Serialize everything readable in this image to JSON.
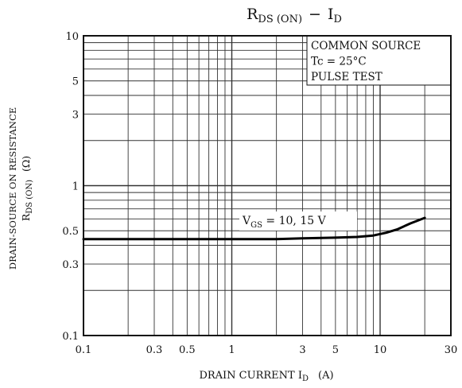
{
  "chart_data": {
    "type": "line",
    "title": {
      "main": "R",
      "main_sub": "DS (ON)",
      "dash": "−",
      "var": "I",
      "var_sub": "D"
    },
    "xlabel": {
      "prefix": "DRAIN CURRENT  I",
      "sub": "D",
      "unit": "(A)"
    },
    "ylabel": {
      "line1": "DRAIN-SOURCE ON RESISTANCE",
      "line2_main": "R",
      "line2_sub": "DS (ON)",
      "line2_unit": "(Ω)"
    },
    "x_scale": "log",
    "y_scale": "log",
    "xlim": [
      0.1,
      30
    ],
    "ylim": [
      0.1,
      10
    ],
    "x_tick_labels": [
      {
        "value": 0.1,
        "label": "0.1"
      },
      {
        "value": 0.3,
        "label": "0.3"
      },
      {
        "value": 0.5,
        "label": "0.5"
      },
      {
        "value": 1,
        "label": "1"
      },
      {
        "value": 3,
        "label": "3"
      },
      {
        "value": 5,
        "label": "5"
      },
      {
        "value": 10,
        "label": "10"
      },
      {
        "value": 30,
        "label": "30"
      }
    ],
    "y_tick_labels": [
      {
        "value": 0.1,
        "label": "0.1"
      },
      {
        "value": 0.3,
        "label": "0.3"
      },
      {
        "value": 0.5,
        "label": "0.5"
      },
      {
        "value": 1,
        "label": "1"
      },
      {
        "value": 3,
        "label": "3"
      },
      {
        "value": 5,
        "label": "5"
      },
      {
        "value": 10,
        "label": "10"
      }
    ],
    "grid": true,
    "conditions": [
      "COMMON SOURCE",
      "Tc = 25°C",
      "PULSE TEST"
    ],
    "series": [
      {
        "label_main": "V",
        "label_sub": "GS",
        "label_rest": " = 10, 15 V",
        "x": [
          0.1,
          0.3,
          1,
          2,
          3,
          5,
          7,
          9,
          11,
          13,
          16,
          20
        ],
        "y": [
          0.44,
          0.44,
          0.44,
          0.44,
          0.445,
          0.45,
          0.455,
          0.465,
          0.485,
          0.51,
          0.56,
          0.61
        ]
      }
    ]
  }
}
